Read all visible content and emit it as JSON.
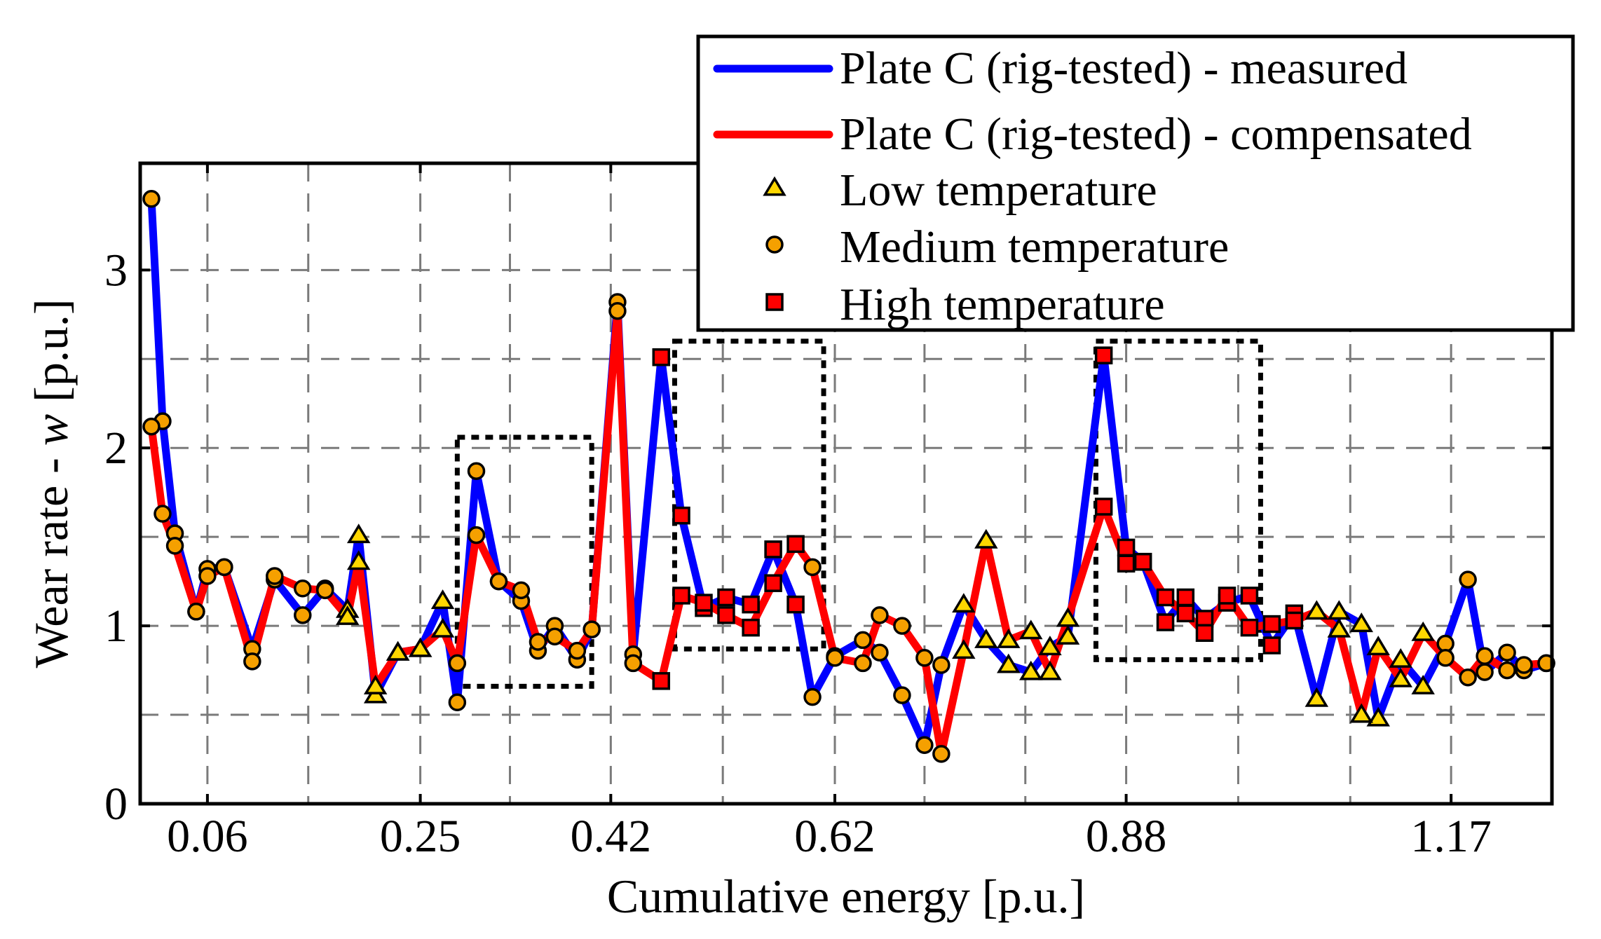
{
  "chart_data": {
    "type": "line",
    "title": "",
    "xlabel": "Cumulative energy [p.u.]",
    "ylabel_parts": [
      "Wear rate - ",
      "w",
      " [p.u.]"
    ],
    "xlim": [
      0.0,
      1.26
    ],
    "ylim": [
      0,
      3.6
    ],
    "grid": true,
    "x_ticks": [
      0.06,
      0.25,
      0.42,
      0.62,
      0.88,
      1.17
    ],
    "x_tick_labels": [
      "0.06",
      "0.25",
      "0.42",
      "0.62",
      "0.88",
      "1.17"
    ],
    "x_gridlines": [
      0.06,
      0.15,
      0.25,
      0.33,
      0.42,
      0.52,
      0.62,
      0.7,
      0.79,
      0.88,
      0.98,
      1.08,
      1.17
    ],
    "y_ticks": [
      0,
      1,
      2,
      3
    ],
    "y_tick_labels": [
      "0",
      "1",
      "2",
      "3"
    ],
    "y_gridlines": [
      0.5,
      1,
      1.5,
      2,
      2.5,
      3
    ],
    "x": [
      0.01,
      0.02,
      0.031,
      0.05,
      0.06,
      0.075,
      0.1,
      0.12,
      0.145,
      0.165,
      0.185,
      0.195,
      0.21,
      0.23,
      0.25,
      0.27,
      0.283,
      0.3,
      0.32,
      0.34,
      0.355,
      0.37,
      0.39,
      0.403,
      0.426,
      0.44,
      0.465,
      0.483,
      0.503,
      0.523,
      0.545,
      0.565,
      0.585,
      0.6,
      0.62,
      0.645,
      0.66,
      0.68,
      0.7,
      0.715,
      0.735,
      0.755,
      0.775,
      0.795,
      0.812,
      0.828,
      0.86,
      0.88,
      0.895,
      0.915,
      0.933,
      0.95,
      0.97,
      0.99,
      1.01,
      1.03,
      1.05,
      1.07,
      1.09,
      1.105,
      1.125,
      1.145,
      1.165,
      1.185,
      1.2,
      1.22,
      1.235,
      1.255
    ],
    "temperature": [
      "medium",
      "medium",
      "medium",
      "medium",
      "medium",
      "medium",
      "medium",
      "medium",
      "medium",
      "medium",
      "low",
      "low",
      "low",
      "low",
      "low",
      "low",
      "medium",
      "medium",
      "medium",
      "medium",
      "medium",
      "medium",
      "medium",
      "medium",
      "medium",
      "medium",
      "high",
      "high",
      "high",
      "high",
      "high",
      "high",
      "high",
      "medium",
      "medium",
      "medium",
      "medium",
      "medium",
      "medium",
      "medium",
      "low",
      "low",
      "low",
      "low",
      "low",
      "low",
      "high",
      "high",
      "high",
      "high",
      "high",
      "high",
      "high",
      "high",
      "high",
      "high",
      "low",
      "low",
      "low",
      "low",
      "low",
      "low",
      "medium",
      "medium",
      "medium",
      "medium",
      "medium",
      "medium"
    ],
    "series": [
      {
        "name": "Plate C (rig-tested) - measured",
        "color": "#0000ff",
        "values": [
          3.4,
          2.15,
          1.52,
          1.08,
          1.32,
          1.33,
          0.87,
          1.26,
          1.06,
          1.21,
          1.09,
          1.51,
          0.61,
          0.85,
          0.87,
          1.14,
          0.57,
          1.87,
          1.25,
          1.14,
          0.86,
          1.0,
          0.81,
          0.98,
          2.82,
          0.84,
          2.51,
          1.62,
          1.1,
          1.16,
          1.12,
          1.43,
          1.12,
          0.6,
          0.83,
          0.92,
          0.85,
          0.61,
          0.33,
          0.78,
          1.12,
          0.92,
          0.78,
          0.74,
          0.88,
          0.94,
          2.52,
          1.44,
          1.36,
          1.02,
          1.16,
          1.04,
          1.13,
          1.17,
          0.89,
          1.07,
          0.59,
          1.08,
          1.01,
          0.48,
          0.81,
          0.66,
          0.9,
          1.26,
          0.74,
          0.85,
          0.75,
          0.79
        ]
      },
      {
        "name": "Plate C (rig-tested) - compensated",
        "color": "#ff0000",
        "values": [
          2.12,
          1.63,
          1.45,
          1.08,
          1.28,
          1.33,
          0.8,
          1.28,
          1.21,
          1.2,
          1.05,
          1.36,
          0.66,
          0.85,
          0.87,
          0.98,
          0.79,
          1.51,
          1.25,
          1.2,
          0.91,
          0.94,
          0.86,
          0.98,
          2.77,
          0.79,
          0.69,
          1.17,
          1.13,
          1.06,
          0.99,
          1.24,
          1.46,
          1.33,
          0.82,
          0.79,
          1.06,
          1.0,
          0.82,
          0.28,
          0.86,
          1.48,
          0.92,
          0.97,
          0.74,
          1.04,
          1.67,
          1.35,
          1.36,
          1.16,
          1.07,
          0.96,
          1.17,
          0.99,
          1.01,
          1.03,
          1.08,
          0.98,
          0.5,
          0.88,
          0.7,
          0.96,
          0.82,
          0.71,
          0.83,
          0.75,
          0.78,
          0.79
        ]
      }
    ],
    "dotted_boxes": [
      {
        "x": [
          0.283,
          0.403
        ],
        "y": [
          0.66,
          2.06
        ]
      },
      {
        "x": [
          0.477,
          0.61
        ],
        "y": [
          0.87,
          2.6
        ]
      },
      {
        "x": [
          0.853,
          1.0
        ],
        "y": [
          0.81,
          2.6
        ]
      }
    ],
    "legend": {
      "position": "top-right",
      "entries": [
        {
          "label": "Plate C (rig-tested) - measured",
          "kind": "line",
          "color": "#0000ff"
        },
        {
          "label": "Plate C (rig-tested) - compensated",
          "kind": "line",
          "color": "#ff0000"
        },
        {
          "label": "Low temperature",
          "kind": "triangle",
          "color": "#ffd700"
        },
        {
          "label": "Medium temperature",
          "kind": "circle",
          "color": "#f5a000"
        },
        {
          "label": "High temperature",
          "kind": "square",
          "color": "#ff0000"
        }
      ]
    },
    "marker_colors": {
      "low": "#ffd700",
      "medium": "#f5a000",
      "high": "#ff0000"
    }
  }
}
